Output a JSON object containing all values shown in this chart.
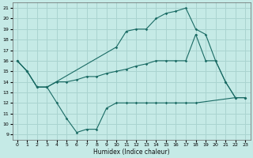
{
  "xlabel": "Humidex (Indice chaleur)",
  "bg_color": "#c5eae6",
  "grid_color": "#aad4d0",
  "line_color": "#1a6b64",
  "xlim": [
    -0.5,
    23.5
  ],
  "ylim": [
    8.5,
    21.5
  ],
  "yticks": [
    9,
    10,
    11,
    12,
    13,
    14,
    15,
    16,
    17,
    18,
    19,
    20,
    21
  ],
  "xticks": [
    0,
    1,
    2,
    3,
    4,
    5,
    6,
    7,
    8,
    9,
    10,
    11,
    12,
    13,
    14,
    15,
    16,
    17,
    18,
    19,
    20,
    21,
    22,
    23
  ],
  "line1_x": [
    0,
    1,
    2,
    3,
    4,
    5,
    6,
    7,
    8,
    9,
    10,
    11,
    12,
    13,
    14,
    15,
    16,
    17,
    18,
    22,
    23
  ],
  "line1_y": [
    16,
    15,
    13.5,
    13.5,
    12,
    10.5,
    9.2,
    9.5,
    9.5,
    11.5,
    12,
    12,
    12,
    12,
    12,
    12,
    12,
    12,
    12,
    12.5,
    12.5
  ],
  "line2_x": [
    0,
    1,
    2,
    3,
    4,
    5,
    6,
    7,
    8,
    9,
    10,
    11,
    12,
    13,
    14,
    15,
    16,
    17,
    18,
    19,
    20,
    21,
    22,
    23
  ],
  "line2_y": [
    16,
    15,
    13.5,
    13.5,
    14,
    14,
    14.2,
    14.5,
    14.5,
    14.8,
    15,
    15.2,
    15.5,
    15.7,
    16,
    16,
    16,
    16,
    18.5,
    16,
    16,
    14,
    12.5,
    12.5
  ],
  "line3_x": [
    0,
    1,
    2,
    3,
    10,
    11,
    12,
    13,
    14,
    15,
    16,
    17,
    18,
    19,
    20,
    21,
    22,
    23
  ],
  "line3_y": [
    16,
    15,
    13.5,
    13.5,
    17.3,
    18.8,
    19,
    19,
    20,
    20.5,
    20.7,
    21,
    19,
    18.5,
    16,
    14,
    12.5,
    12.5
  ]
}
